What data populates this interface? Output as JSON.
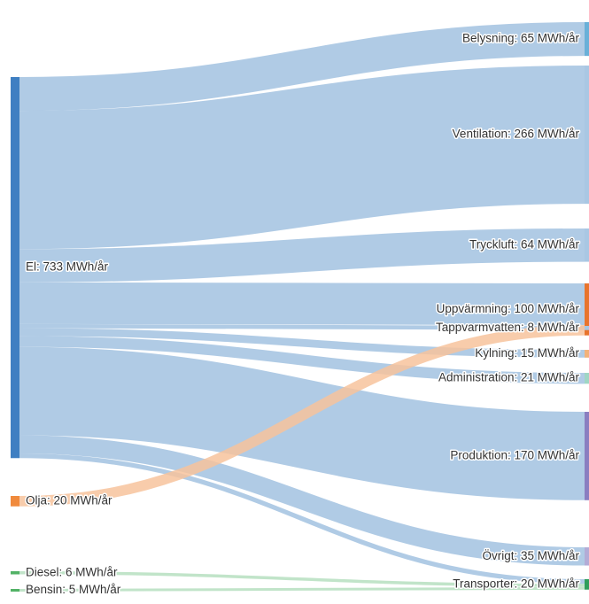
{
  "chart_data": {
    "type": "sankey",
    "unit": "MWh/år",
    "sources": [
      {
        "id": "el",
        "label": "El: 733 MWh/år",
        "value": 733,
        "color": "#3f7fc2",
        "link_color": "#a9c7e3"
      },
      {
        "id": "olja",
        "label": "Olja: 20 MWh/år",
        "value": 20,
        "color": "#f08a3c",
        "link_color": "#f7c39c"
      },
      {
        "id": "diesel",
        "label": "Diesel: 6 MWh/år",
        "value": 6,
        "color": "#52b266",
        "link_color": "#b6dfbf"
      },
      {
        "id": "bensin",
        "label": "Bensin: 5 MWh/år",
        "value": 5,
        "color": "#52b266",
        "link_color": "#b6dfbf"
      }
    ],
    "targets": [
      {
        "id": "belysning",
        "label": "Belysning: 65 MWh/år",
        "value": 65,
        "color": "#6ab0d8"
      },
      {
        "id": "ventilation",
        "label": "Ventilation: 266 MWh/år",
        "value": 266,
        "color": "#a9c7e3"
      },
      {
        "id": "tryckluft",
        "label": "Tryckluft: 64 MWh/år",
        "value": 64,
        "color": "#a9c7e3"
      },
      {
        "id": "uppvarmning",
        "label": "Uppvärmning: 100 MWh/år",
        "value": 100,
        "color": "#e8742c"
      },
      {
        "id": "tappvarmvatten",
        "label": "Tappvarmvatten: 8 MWh/år",
        "value": 8,
        "color": "#a9c7e3"
      },
      {
        "id": "kylning",
        "label": "Kylning: 15 MWh/år",
        "value": 15,
        "color": "#f2b27a"
      },
      {
        "id": "administration",
        "label": "Administration: 21 MWh/år",
        "value": 21,
        "color": "#9fd6c4"
      },
      {
        "id": "produktion",
        "label": "Produktion: 170 MWh/år",
        "value": 170,
        "color": "#8a7ec0"
      },
      {
        "id": "ovrigt",
        "label": "Övrigt: 35 MWh/år",
        "value": 35,
        "color": "#b3acd6"
      },
      {
        "id": "transporter",
        "label": "Transporter: 20 MWh/år",
        "value": 20,
        "color": "#2f9e5a"
      }
    ],
    "links": [
      {
        "source": "el",
        "target": "belysning",
        "value": 65
      },
      {
        "source": "el",
        "target": "ventilation",
        "value": 266
      },
      {
        "source": "el",
        "target": "tryckluft",
        "value": 64
      },
      {
        "source": "el",
        "target": "uppvarmning",
        "value": 80
      },
      {
        "source": "el",
        "target": "tappvarmvatten",
        "value": 8
      },
      {
        "source": "el",
        "target": "kylning",
        "value": 15
      },
      {
        "source": "el",
        "target": "administration",
        "value": 21
      },
      {
        "source": "el",
        "target": "produktion",
        "value": 170
      },
      {
        "source": "el",
        "target": "ovrigt",
        "value": 35
      },
      {
        "source": "el",
        "target": "transporter",
        "value": 9
      },
      {
        "source": "olja",
        "target": "uppvarmning",
        "value": 20
      },
      {
        "source": "diesel",
        "target": "transporter",
        "value": 6
      },
      {
        "source": "bensin",
        "target": "transporter",
        "value": 5
      }
    ]
  }
}
